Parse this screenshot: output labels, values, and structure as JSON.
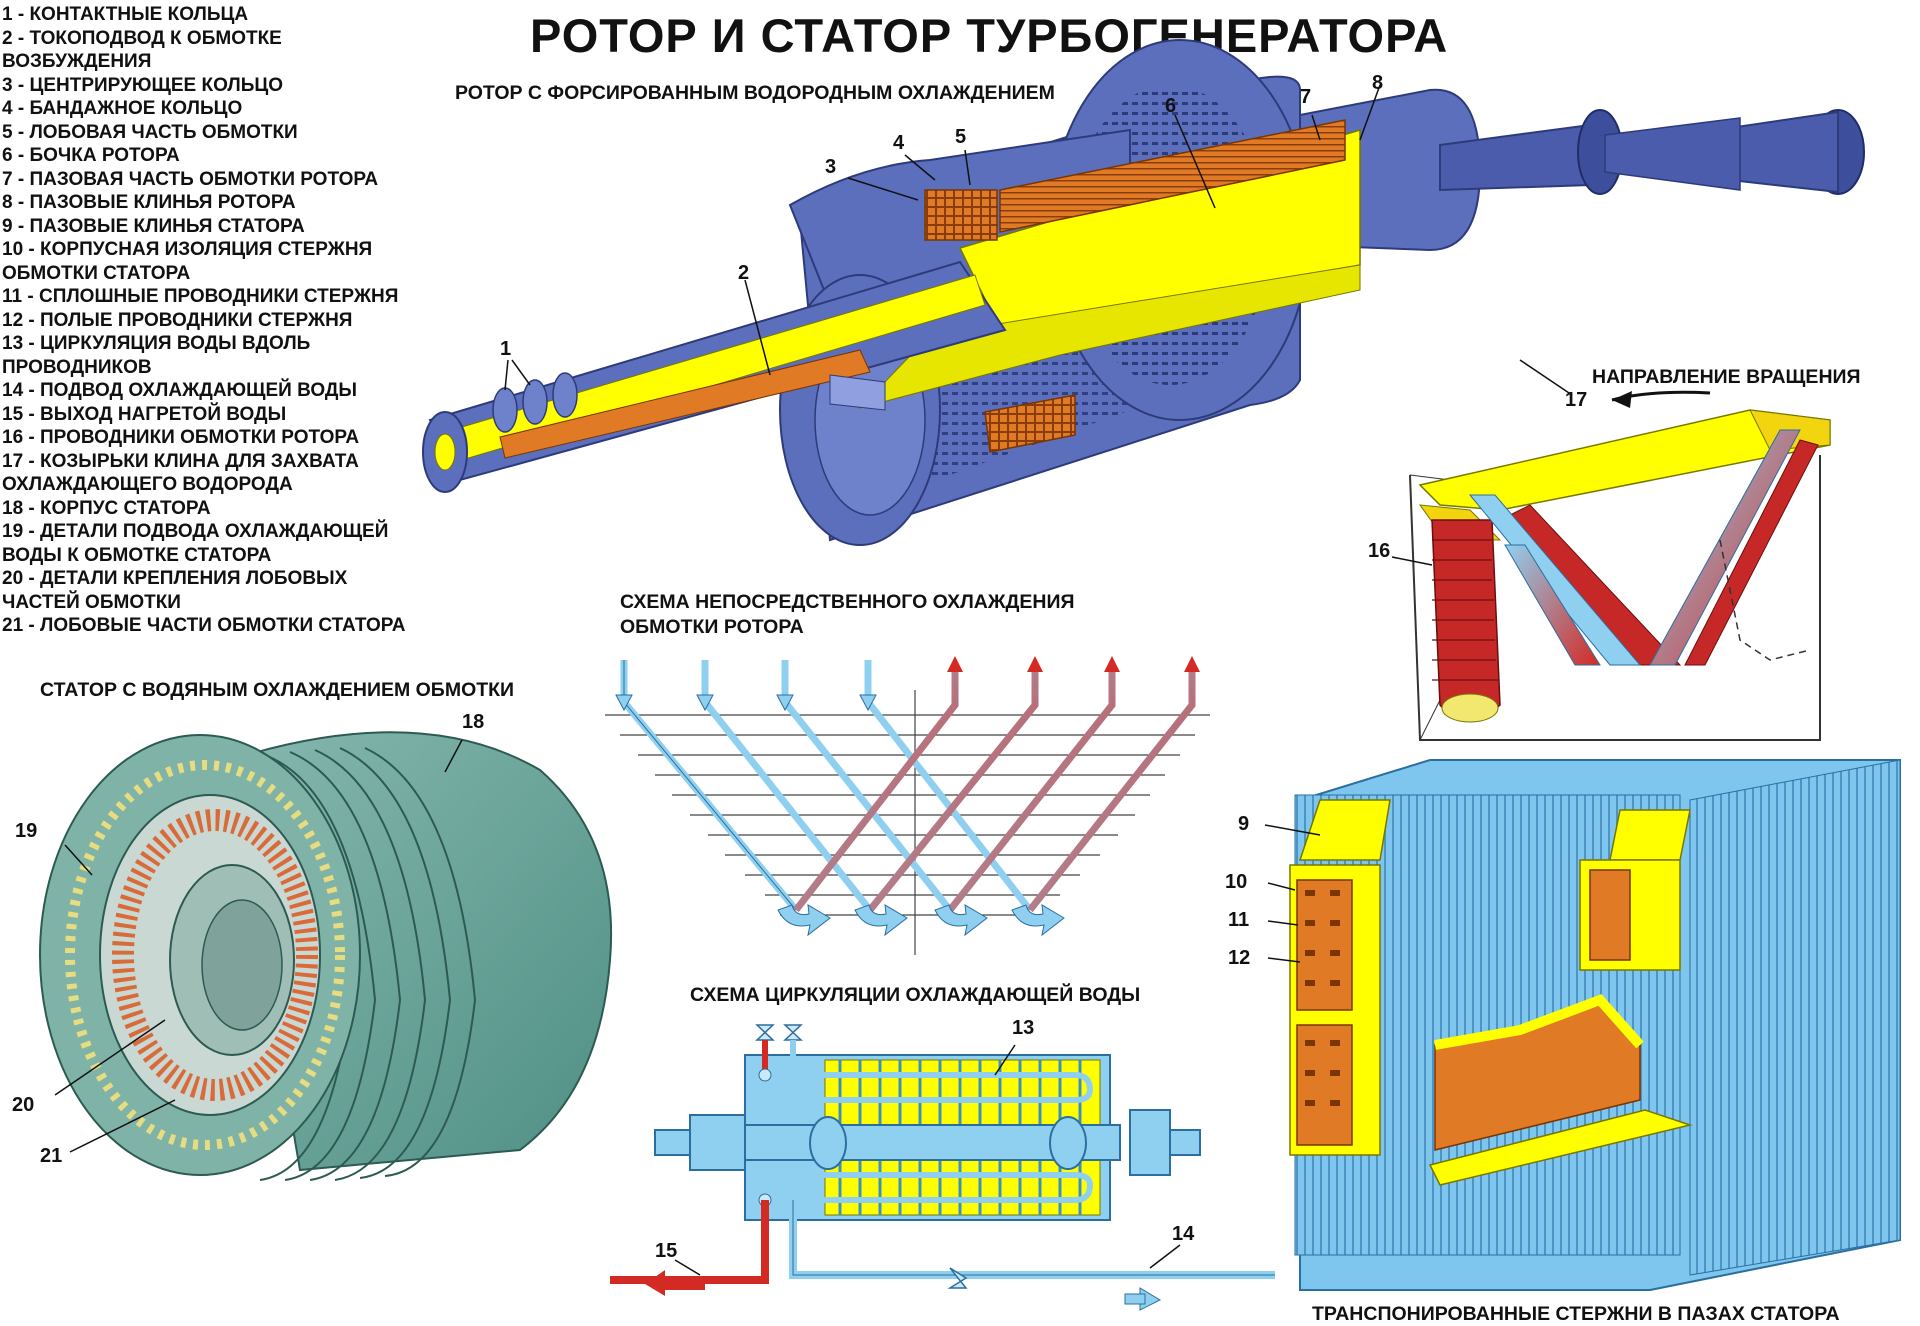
{
  "title": "РОТОР И СТАТОР ТУРБОГЕНЕРАТОРА",
  "legend": [
    "1 - КОНТАКТНЫЕ КОЛЬЦА",
    "2 - ТОКОПОДВОД К ОБМОТКЕ",
    "ВОЗБУЖДЕНИЯ",
    "3 - ЦЕНТРИРУЮЩЕЕ КОЛЬЦО",
    "4 - БАНДАЖНОЕ КОЛЬЦО",
    "5 - ЛОБОВАЯ ЧАСТЬ ОБМОТКИ",
    "6 - БОЧКА РОТОРА",
    "7 - ПАЗОВАЯ ЧАСТЬ ОБМОТКИ РОТОРА",
    "8 - ПАЗОВЫЕ КЛИНЬЯ РОТОРА",
    "9 - ПАЗОВЫЕ КЛИНЬЯ СТАТОРА",
    "10 - КОРПУСНАЯ ИЗОЛЯЦИЯ СТЕРЖНЯ",
    "ОБМОТКИ СТАТОРА",
    "11 - СПЛОШНЫЕ ПРОВОДНИКИ СТЕРЖНЯ",
    "12 - ПОЛЫЕ ПРОВОДНИКИ СТЕРЖНЯ",
    "13 - ЦИРКУЛЯЦИЯ ВОДЫ ВДОЛЬ",
    "ПРОВОДНИКОВ",
    "14 - ПОДВОД ОХЛАЖДАЮЩЕЙ ВОДЫ",
    "15 - ВЫХОД НАГРЕТОЙ ВОДЫ",
    "16 - ПРОВОДНИКИ ОБМОТКИ РОТОРА",
    "17 - КОЗЫРЬКИ КЛИНА ДЛЯ ЗАХВАТА",
    "ОХЛАЖДАЮЩЕГО ВОДОРОДА",
    "18 - КОРПУС СТАТОРА",
    "19 - ДЕТАЛИ ПОДВОДА ОХЛАЖДАЮЩЕЙ",
    "ВОДЫ К ОБМОТКЕ СТАТОРА",
    "20 - ДЕТАЛИ КРЕПЛЕНИЯ ЛОБОВЫХ",
    "ЧАСТЕЙ ОБМОТКИ",
    "21 - ЛОБОВЫЕ ЧАСТИ ОБМОТКИ СТАТОРА"
  ],
  "headers": {
    "rotor": "РОТОР С ФОРСИРОВАННЫМ ВОДОРОДНЫМ ОХЛАЖДЕНИЕМ",
    "rotation": "НАПРАВЛЕНИЕ ВРАЩЕНИЯ",
    "scheme_rotor_1": "СХЕМА НЕПОСРЕДСТВЕННОГО ОХЛАЖДЕНИЯ",
    "scheme_rotor_2": "ОБМОТКИ РОТОРА",
    "stator": "СТАТОР С ВОДЯНЫМ ОХЛАЖДЕНИЕМ ОБМОТКИ",
    "water": "СХЕМА ЦИРКУЛЯЦИИ ОХЛАЖДАЮЩЕЙ ВОДЫ",
    "bars": "ТРАНСПОНИРОВАННЫЕ СТЕРЖНИ В ПАЗАХ СТАТОРА"
  },
  "numbers": {
    "n1": "1",
    "n2": "2",
    "n3": "3",
    "n4": "4",
    "n5": "5",
    "n6": "6",
    "n7": "7",
    "n8": "8",
    "n9": "9",
    "n10": "10",
    "n11": "11",
    "n12": "12",
    "n13": "13",
    "n14": "14",
    "n15": "15",
    "n16": "16",
    "n17": "17",
    "n18": "18",
    "n19": "19",
    "n20": "20",
    "n21": "21"
  },
  "colors": {
    "rotor_blue": "#5b6fbd",
    "rotor_dark": "#3d4f9c",
    "yellow": "#ffff00",
    "copper": "#e07a24",
    "water_blue": "#8fd0f0",
    "hot_red": "#d42a24",
    "stator_green": "#6fa89e"
  }
}
